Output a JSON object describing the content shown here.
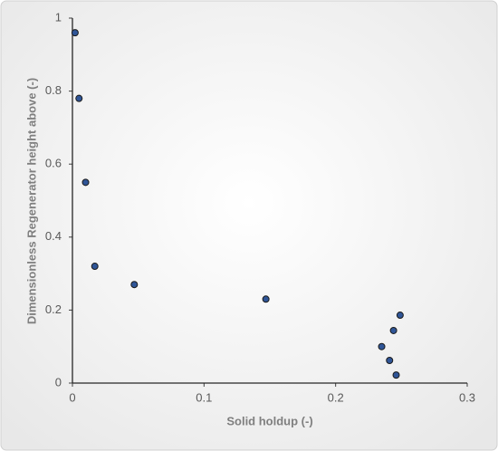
{
  "chart_data": {
    "type": "scatter",
    "x_label": "Solid holdup (-)",
    "y_label": "Dimensionless Regenerator height above (-)",
    "series": [
      {
        "color": "#2f5597",
        "x": [
          0.002,
          0.005,
          0.01,
          0.017,
          0.047,
          0.147,
          0.249,
          0.244,
          0.235,
          0.241,
          0.246
        ],
        "values": [
          0.96,
          0.78,
          0.55,
          0.32,
          0.27,
          0.23,
          0.186,
          0.144,
          0.1,
          0.062,
          0.022
        ]
      }
    ],
    "xlim": [
      0,
      0.3
    ],
    "xticks": [
      0,
      0.1,
      0.2,
      0.3
    ],
    "ylim": [
      0,
      1
    ],
    "yticks": [
      0,
      0.2,
      0.4,
      0.6,
      0.8,
      1
    ],
    "grid": false
  }
}
